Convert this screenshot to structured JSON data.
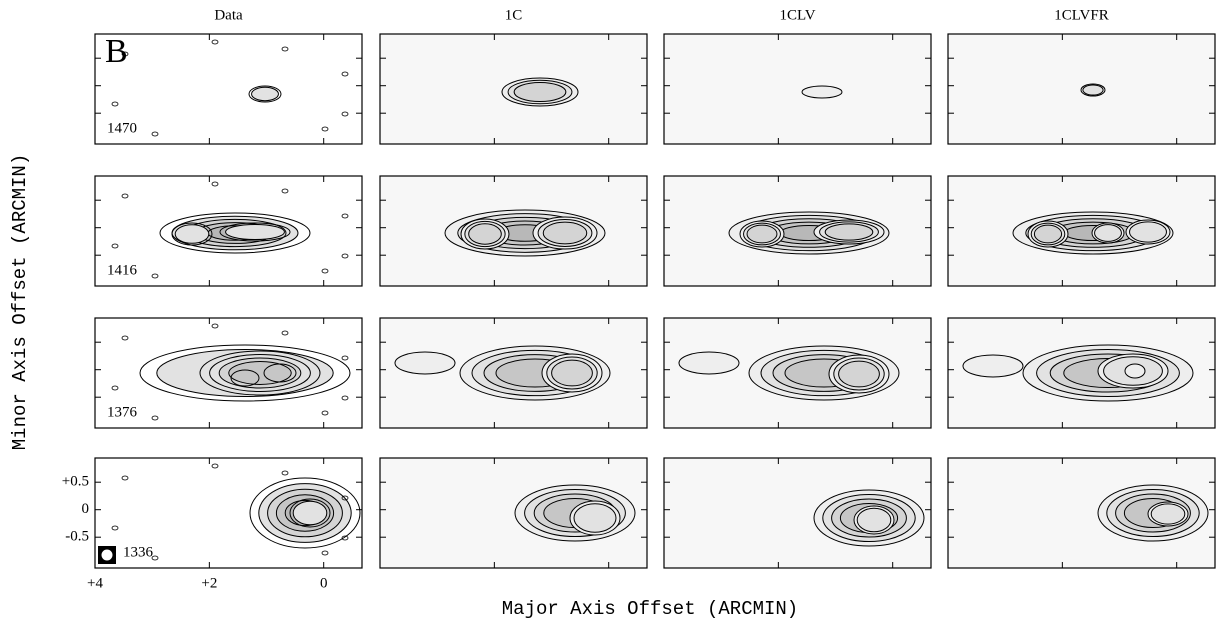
{
  "panel_letter": "B",
  "columns": [
    "Data",
    "1C",
    "1CLV",
    "1CLVFR"
  ],
  "rows": [
    "1470",
    "1416",
    "1376",
    "1336"
  ],
  "x_axis": {
    "label": "Major Axis Offset (ARCMIN)",
    "lim": [
      4,
      -0.67
    ],
    "ticks": [
      {
        "value": 4,
        "label": "+4"
      },
      {
        "value": 2,
        "label": "+2"
      },
      0
    ]
  },
  "y_axis": {
    "label": "Minor Axis Offset (ARCMIN)",
    "lim": [
      -1.06,
      0.94
    ],
    "ticks": [
      {
        "value": 0.5,
        "label": "+0.5"
      },
      0,
      -0.5
    ]
  }
}
